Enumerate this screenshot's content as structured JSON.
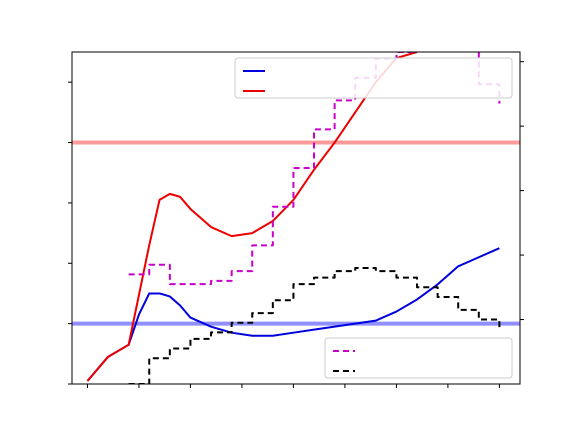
{
  "chart_data": {
    "type": "line",
    "title": "",
    "xlabel": "",
    "ylabel_left": "",
    "ylabel_right": "",
    "xlim": [
      -0.75,
      21
    ],
    "ylim_left": [
      0,
      5.5
    ],
    "ylim_right": [
      -1,
      4.15
    ],
    "xticks": [
      0,
      2.5,
      5,
      7.5,
      10,
      12.5,
      15,
      17.5,
      20
    ],
    "yticks_left": [
      0,
      1,
      2,
      3,
      4,
      5
    ],
    "yticks_right": [
      0,
      1,
      2,
      3,
      4
    ],
    "tick_labels_legible": false,
    "legend_upper": {
      "position": "top-right",
      "entries": [
        {
          "series": "blue",
          "label": ""
        },
        {
          "series": "red",
          "label": ""
        }
      ]
    },
    "legend_lower": {
      "position": "bottom-right",
      "entries": [
        {
          "series": "magenta_dashed",
          "label": ""
        },
        {
          "series": "black_dashed",
          "label": ""
        }
      ]
    },
    "hlines": [
      {
        "y": 1.0,
        "axis": "left",
        "color": "#8f8fff"
      },
      {
        "y": 4.0,
        "axis": "left",
        "color": "#ff9a9a"
      }
    ],
    "series": [
      {
        "key": "blue",
        "axis": "left",
        "color": "#0000dd",
        "style": "solid",
        "x": [
          0,
          1,
          2,
          2.5,
          3,
          3.5,
          4,
          4.5,
          5,
          6,
          7,
          8,
          9,
          10,
          11,
          12,
          13,
          14,
          15,
          16,
          17,
          18,
          19,
          20
        ],
        "y": [
          0.05,
          0.45,
          0.65,
          1.15,
          1.5,
          1.5,
          1.45,
          1.3,
          1.1,
          0.95,
          0.85,
          0.8,
          0.8,
          0.85,
          0.9,
          0.95,
          1.0,
          1.05,
          1.2,
          1.4,
          1.65,
          1.95,
          2.1,
          2.25
        ]
      },
      {
        "key": "red",
        "axis": "left",
        "color": "#ee0000",
        "style": "solid",
        "x": [
          0,
          1,
          2,
          3,
          3.5,
          4,
          4.5,
          5,
          6,
          7,
          8,
          9,
          10,
          11,
          12,
          13,
          14,
          15,
          16
        ],
        "y": [
          0.05,
          0.45,
          0.65,
          2.3,
          3.05,
          3.15,
          3.1,
          2.9,
          2.6,
          2.45,
          2.5,
          2.7,
          3.05,
          3.55,
          4.0,
          4.5,
          5.0,
          5.4,
          5.5
        ]
      },
      {
        "key": "magenta_dashed",
        "axis": "right",
        "color": "#c800c8",
        "style": "step-dashed",
        "x": [
          2,
          3,
          4,
          5,
          6,
          7,
          8,
          9,
          10,
          11,
          12,
          13,
          14,
          15,
          16,
          17,
          18,
          19,
          20
        ],
        "y": [
          0.7,
          0.85,
          0.55,
          0.55,
          0.6,
          0.75,
          1.15,
          1.75,
          2.35,
          2.95,
          3.4,
          3.75,
          4.05,
          4.15,
          4.3,
          4.25,
          4.2,
          3.65,
          3.35
        ]
      },
      {
        "key": "black_dashed",
        "axis": "right",
        "color": "#000000",
        "style": "step-dashed",
        "x": [
          2,
          3,
          4,
          5,
          6,
          7,
          8,
          9,
          10,
          11,
          12,
          13,
          14,
          15,
          16,
          17,
          18,
          19,
          20
        ],
        "y": [
          -1.0,
          -0.6,
          -0.45,
          -0.3,
          -0.2,
          -0.05,
          0.1,
          0.3,
          0.55,
          0.65,
          0.75,
          0.8,
          0.75,
          0.65,
          0.5,
          0.35,
          0.15,
          0.0,
          -0.15
        ]
      }
    ]
  }
}
